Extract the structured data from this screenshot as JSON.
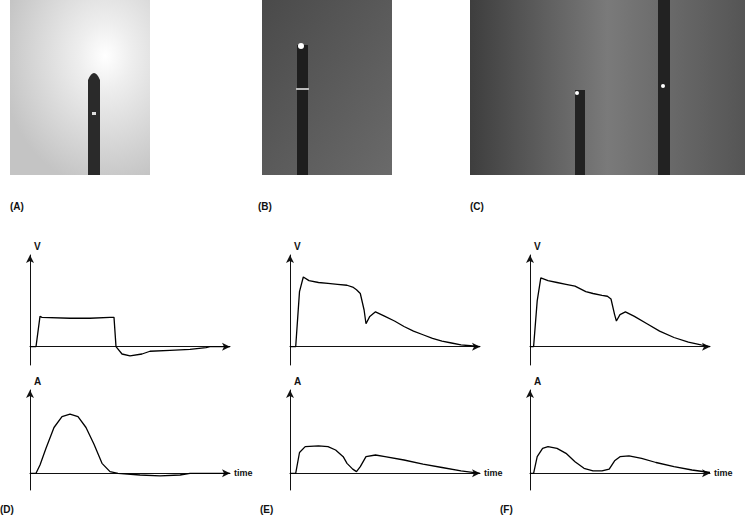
{
  "photos": [
    {
      "label": "(A)"
    },
    {
      "label": "(B)"
    },
    {
      "label": "(C)"
    }
  ],
  "chart_data": [
    {
      "type": "line",
      "ylabel": "V",
      "xlim": [
        0,
        100
      ],
      "ylim": [
        -20,
        100
      ],
      "tick_labels": false,
      "grid": false,
      "color": "#000000",
      "x": [
        0,
        3,
        5,
        6,
        20,
        30,
        40,
        42,
        43,
        46,
        50,
        56,
        60,
        70,
        80,
        88,
        90,
        100
      ],
      "values": [
        0,
        0,
        33,
        32,
        31,
        31,
        32,
        32,
        0,
        -8,
        -10,
        -8,
        -5,
        -4,
        -3,
        -1,
        0,
        0
      ]
    },
    {
      "type": "line",
      "ylabel": "A",
      "xlabel": "time",
      "panel": "(D)",
      "xlim": [
        0,
        100
      ],
      "ylim": [
        -20,
        100
      ],
      "tick_labels": false,
      "grid": false,
      "color": "#000000",
      "x": [
        0,
        3,
        5,
        8,
        12,
        16,
        20,
        24,
        28,
        32,
        36,
        40,
        44,
        55,
        65,
        75,
        80,
        100
      ],
      "values": [
        0,
        0,
        10,
        30,
        55,
        68,
        71,
        68,
        55,
        35,
        12,
        2,
        0,
        -2,
        -3,
        -2,
        0,
        0
      ]
    },
    {
      "type": "line",
      "ylabel": "V",
      "xlim": [
        0,
        100
      ],
      "ylim": [
        -20,
        100
      ],
      "tick_labels": false,
      "grid": false,
      "color": "#000000",
      "x": [
        0,
        3,
        5,
        7,
        10,
        15,
        20,
        25,
        30,
        33,
        35,
        37,
        39,
        40,
        42,
        45,
        50,
        55,
        60,
        65,
        70,
        75,
        80,
        85,
        90,
        95,
        100
      ],
      "values": [
        0,
        0,
        60,
        76,
        72,
        70,
        69,
        68,
        67,
        65,
        62,
        58,
        40,
        25,
        33,
        38,
        33,
        28,
        22,
        17,
        13,
        9,
        6,
        4,
        2,
        1,
        0
      ]
    },
    {
      "type": "line",
      "ylabel": "A",
      "xlabel": "time",
      "panel": "(E)",
      "xlim": [
        0,
        100
      ],
      "ylim": [
        -20,
        100
      ],
      "tick_labels": false,
      "grid": false,
      "color": "#000000",
      "x": [
        0,
        3,
        5,
        8,
        15,
        20,
        24,
        28,
        30,
        33,
        35,
        37,
        40,
        45,
        50,
        60,
        70,
        80,
        90,
        100
      ],
      "values": [
        0,
        0,
        25,
        32,
        33,
        32,
        28,
        20,
        12,
        5,
        2,
        8,
        20,
        22,
        20,
        16,
        11,
        7,
        3,
        0
      ]
    },
    {
      "type": "line",
      "ylabel": "V",
      "xlim": [
        0,
        100
      ],
      "ylim": [
        -20,
        100
      ],
      "tick_labels": false,
      "grid": false,
      "color": "#000000",
      "x": [
        0,
        2,
        4,
        6,
        10,
        15,
        20,
        25,
        28,
        31,
        35,
        40,
        43,
        45,
        47,
        48,
        50,
        53,
        58,
        65,
        72,
        80,
        88,
        95,
        100
      ],
      "values": [
        0,
        0,
        50,
        75,
        72,
        70,
        68,
        66,
        63,
        60,
        58,
        56,
        55,
        52,
        35,
        28,
        35,
        38,
        33,
        25,
        17,
        10,
        5,
        2,
        0
      ]
    },
    {
      "type": "line",
      "ylabel": "A",
      "xlabel": "time",
      "panel": "(F)",
      "xlim": [
        0,
        100
      ],
      "ylim": [
        -20,
        100
      ],
      "tick_labels": false,
      "grid": false,
      "color": "#000000",
      "x": [
        0,
        2,
        4,
        7,
        10,
        15,
        20,
        25,
        30,
        35,
        40,
        44,
        47,
        50,
        55,
        62,
        70,
        80,
        90,
        100
      ],
      "values": [
        0,
        0,
        20,
        30,
        32,
        30,
        24,
        14,
        6,
        3,
        3,
        5,
        15,
        20,
        21,
        18,
        13,
        8,
        4,
        1
      ]
    }
  ]
}
